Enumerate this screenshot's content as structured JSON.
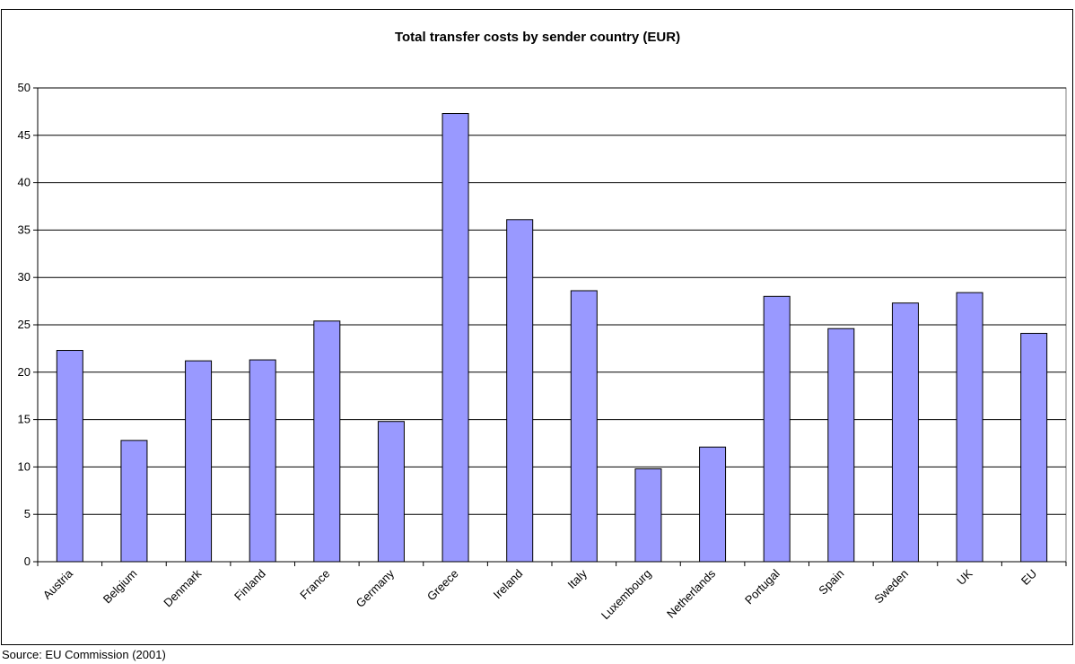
{
  "chart_data": {
    "type": "bar",
    "title": "Total transfer costs by sender country (EUR)",
    "source": "Source: EU Commission (2001)",
    "categories": [
      "Austria",
      "Belgium",
      "Denmark",
      "Finland",
      "France",
      "Germany",
      "Greece",
      "Ireland",
      "Italy",
      "Luxembourg",
      "Netherlands",
      "Portugal",
      "Spain",
      "Sweden",
      "UK",
      "EU"
    ],
    "values": [
      22.3,
      12.8,
      21.2,
      21.3,
      25.4,
      14.8,
      47.3,
      36.1,
      28.6,
      9.8,
      12.1,
      28.0,
      24.6,
      27.3,
      28.4,
      24.1
    ],
    "color": "#9999ff",
    "ylim": [
      0,
      50
    ],
    "yticks": [
      0,
      5,
      10,
      15,
      20,
      25,
      30,
      35,
      40,
      45,
      50
    ],
    "grid": true
  }
}
